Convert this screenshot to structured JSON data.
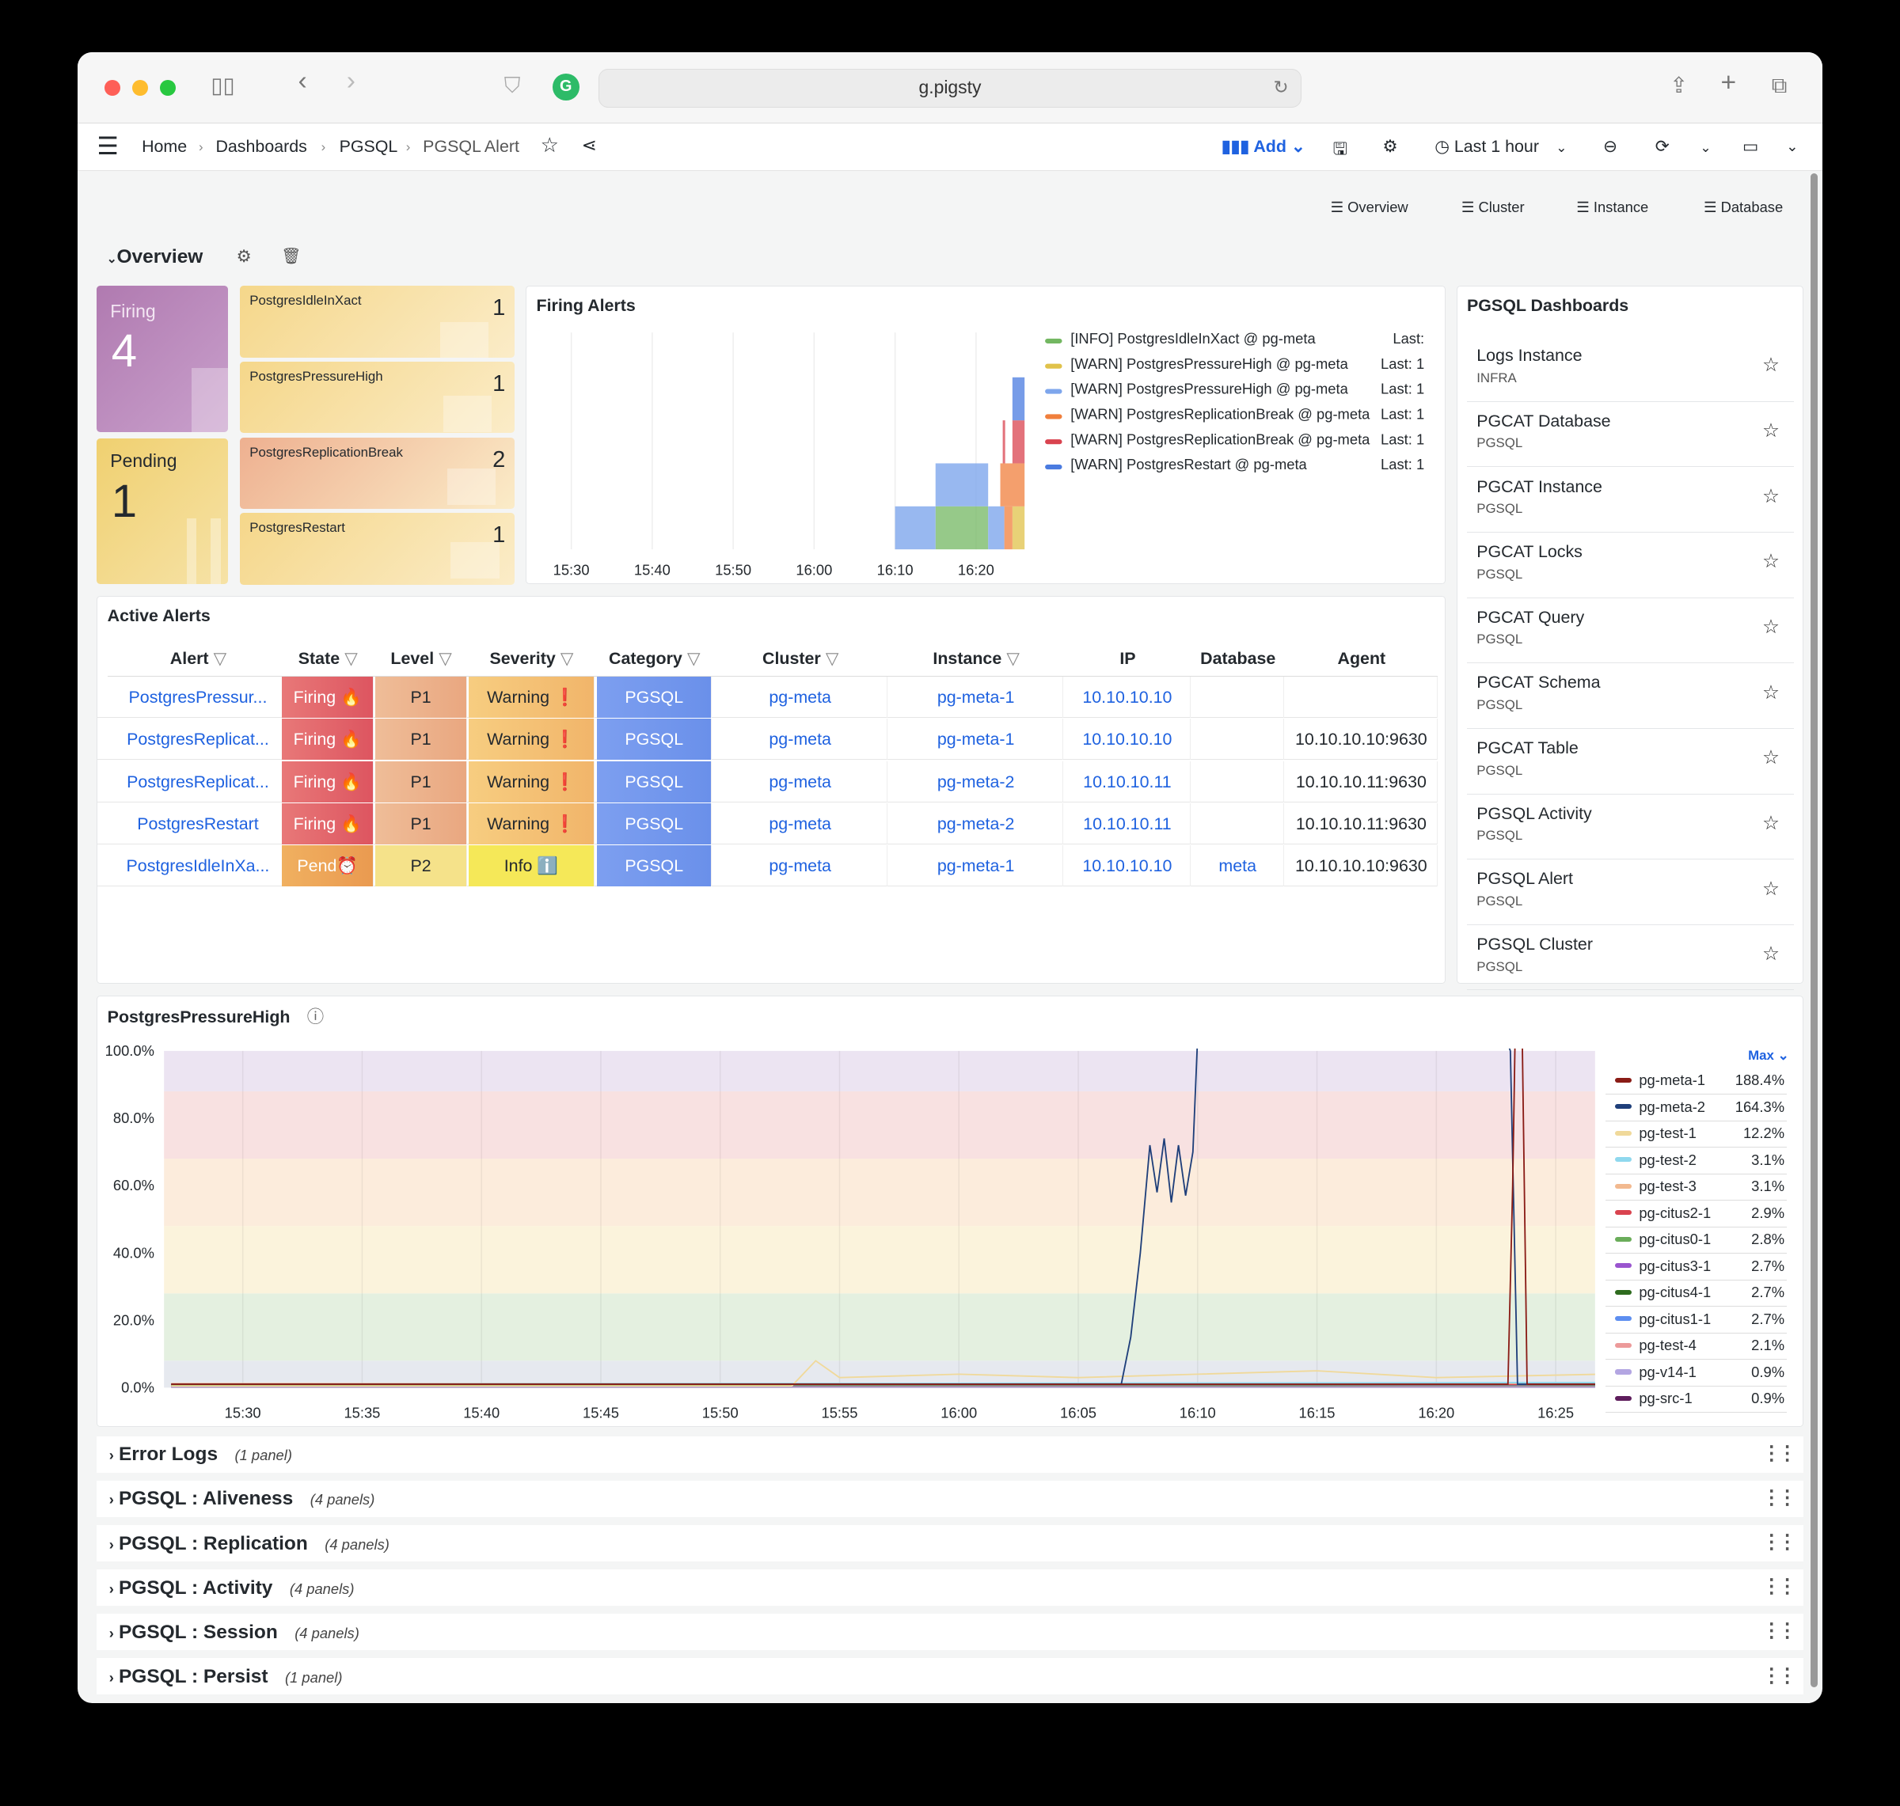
{
  "browser": {
    "url": "g.pigsty"
  },
  "nav": {
    "breadcrumbs": [
      "Home",
      "Dashboards",
      "PGSQL",
      "PGSQL Alert"
    ],
    "add_label": "Add",
    "time_range": "Last 1 hour"
  },
  "dashboard_links": [
    "Overview",
    "Cluster",
    "Instance",
    "Database"
  ],
  "overview_row": {
    "title": "Overview"
  },
  "stats": {
    "firing": {
      "label": "Firing",
      "value": "4"
    },
    "pending": {
      "label": "Pending",
      "value": "1"
    }
  },
  "alert_list": [
    {
      "name": "PostgresIdleInXact",
      "count": "1",
      "color": "#f5d78a"
    },
    {
      "name": "PostgresPressureHigh",
      "count": "1",
      "color": "#f5d78a"
    },
    {
      "name": "PostgresReplicationBreak",
      "count": "2",
      "color": "#eeb090"
    },
    {
      "name": "PostgresRestart",
      "count": "1",
      "color": "#f5d78a"
    }
  ],
  "firing_alerts": {
    "title": "Firing Alerts"
  },
  "chart_data": [
    {
      "type": "bar",
      "title": "Firing Alerts",
      "x_ticks": [
        "15:30",
        "15:40",
        "15:50",
        "16:00",
        "16:10",
        "16:20"
      ],
      "stacked": true,
      "legend_placement": "right",
      "series": [
        {
          "name": "[INFO] PostgresIdleInXact @ pg-meta",
          "last": "Last:",
          "color": "#73b761",
          "segments": [
            {
              "start": "16:15",
              "end": "16:21.5",
              "value": 1
            }
          ]
        },
        {
          "name": "[WARN] PostgresPressureHigh @ pg-meta",
          "last": "Last: 1",
          "color": "#e0c24a",
          "segments": [
            {
              "start": "16:24.5",
              "end": "16:26",
              "value": 1
            }
          ]
        },
        {
          "name": "[WARN] PostgresPressureHigh @ pg-meta",
          "last": "Last: 1",
          "color": "#7ea6ec",
          "segments": [
            {
              "start": "16:10",
              "end": "16:23.5",
              "value": 1
            }
          ]
        },
        {
          "name": "[WARN] PostgresReplicationBreak @ pg-meta",
          "last": "Last: 1",
          "color": "#f07f3c",
          "segments": [
            {
              "start": "16:23",
              "end": "16:26",
              "value": 1
            }
          ]
        },
        {
          "name": "[WARN] PostgresReplicationBreak @ pg-meta",
          "last": "Last: 1",
          "color": "#d9434f",
          "segments": [
            {
              "start": "16:23.3",
              "end": "16:23.6",
              "value": 1
            },
            {
              "start": "16:24.5",
              "end": "16:26",
              "value": 1
            }
          ]
        },
        {
          "name": "[WARN] PostgresRestart @ pg-meta",
          "last": "Last: 1",
          "color": "#4a7be0",
          "segments": [
            {
              "start": "16:24.5",
              "end": "16:26",
              "value": 1
            }
          ]
        }
      ]
    },
    {
      "type": "line",
      "title": "PostgresPressureHigh",
      "x_ticks": [
        "15:30",
        "15:35",
        "15:40",
        "15:45",
        "15:50",
        "15:55",
        "16:00",
        "16:05",
        "16:10",
        "16:15",
        "16:20",
        "16:25"
      ],
      "y_ticks": [
        "0.0%",
        "20.0%",
        "40.0%",
        "60.0%",
        "80.0%",
        "100.0%"
      ],
      "ylim": [
        0,
        100
      ],
      "legend_placement": "right",
      "legend_stat": "Max",
      "thresholds": [
        {
          "from": 0,
          "to": 8,
          "color": "#e6e9ef"
        },
        {
          "from": 8,
          "to": 28,
          "color": "#e4f0e0"
        },
        {
          "from": 28,
          "to": 48,
          "color": "#fbf3dc"
        },
        {
          "from": 48,
          "to": 68,
          "color": "#fcecdc"
        },
        {
          "from": 68,
          "to": 88,
          "color": "#f8e1e1"
        },
        {
          "from": 88,
          "to": 100,
          "color": "#ece4f2"
        }
      ],
      "series": [
        {
          "name": "pg-meta-1",
          "max": "188.4%",
          "color": "#8a1c16",
          "points": [
            [
              "15:27",
              1
            ],
            [
              "16:23.0",
              1
            ],
            [
              "16:23.2",
              60
            ],
            [
              "16:23.3",
              188
            ],
            [
              "16:23.6",
              188
            ],
            [
              "16:23.8",
              1
            ],
            [
              "16:27",
              1
            ]
          ]
        },
        {
          "name": "pg-meta-2",
          "max": "164.3%",
          "color": "#1f3f7a",
          "points": [
            [
              "15:27",
              1
            ],
            [
              "16:06.8",
              1
            ],
            [
              "16:07.2",
              15
            ],
            [
              "16:07.6",
              40
            ],
            [
              "16:08",
              72
            ],
            [
              "16:08.3",
              58
            ],
            [
              "16:08.6",
              74
            ],
            [
              "16:08.9",
              55
            ],
            [
              "16:09.2",
              72
            ],
            [
              "16:09.5",
              57
            ],
            [
              "16:09.8",
              70
            ],
            [
              "16:10",
              164
            ],
            [
              "16:22.9",
              164
            ],
            [
              "16:23.1",
              100
            ],
            [
              "16:23.4",
              1
            ],
            [
              "16:27",
              1
            ]
          ]
        },
        {
          "name": "pg-test-1",
          "max": "12.2%",
          "color": "#f0d99a",
          "points": [
            [
              "15:27",
              0.5
            ],
            [
              "15:53",
              0.5
            ],
            [
              "15:54",
              8
            ],
            [
              "15:55",
              3
            ],
            [
              "16:00",
              4
            ],
            [
              "16:05",
              3
            ],
            [
              "16:10",
              4
            ],
            [
              "16:15",
              5
            ],
            [
              "16:20",
              3
            ],
            [
              "16:27",
              4
            ]
          ]
        },
        {
          "name": "pg-test-2",
          "max": "3.1%",
          "color": "#8fd8ee",
          "points": [
            [
              "15:27",
              1
            ],
            [
              "16:27",
              1.5
            ]
          ]
        },
        {
          "name": "pg-test-3",
          "max": "3.1%",
          "color": "#f2b98f",
          "points": [
            [
              "15:27",
              1.2
            ],
            [
              "16:27",
              1.3
            ]
          ]
        },
        {
          "name": "pg-citus2-1",
          "max": "2.9%",
          "color": "#d9434f",
          "points": [
            [
              "15:27",
              1
            ],
            [
              "16:27",
              1
            ]
          ]
        },
        {
          "name": "pg-citus0-1",
          "max": "2.8%",
          "color": "#6aad5a",
          "points": [
            [
              "15:27",
              0.8
            ],
            [
              "16:27",
              0.9
            ]
          ]
        },
        {
          "name": "pg-citus3-1",
          "max": "2.7%",
          "color": "#9a55cf",
          "points": [
            [
              "15:27",
              0.7
            ],
            [
              "16:27",
              0.8
            ]
          ]
        },
        {
          "name": "pg-citus4-1",
          "max": "2.7%",
          "color": "#2e6b1e",
          "points": [
            [
              "15:27",
              0.6
            ],
            [
              "16:27",
              0.7
            ]
          ]
        },
        {
          "name": "pg-citus1-1",
          "max": "2.7%",
          "color": "#5d8ef0",
          "points": [
            [
              "15:27",
              0.9
            ],
            [
              "16:27",
              0.8
            ]
          ]
        },
        {
          "name": "pg-test-4",
          "max": "2.1%",
          "color": "#ec9a9a",
          "points": [
            [
              "15:27",
              0.5
            ],
            [
              "16:27",
              0.6
            ]
          ]
        },
        {
          "name": "pg-v14-1",
          "max": "0.9%",
          "color": "#b3a6e2",
          "points": [
            [
              "15:27",
              0.3
            ],
            [
              "16:27",
              0.3
            ]
          ]
        },
        {
          "name": "pg-src-1",
          "max": "0.9%",
          "color": "#5e1d5c",
          "points": [
            [
              "15:27",
              0.2
            ],
            [
              "16:27",
              0.2
            ]
          ]
        }
      ]
    }
  ],
  "active_alerts": {
    "title": "Active Alerts",
    "headers": [
      "Alert",
      "State",
      "Level",
      "Severity",
      "Category",
      "Cluster",
      "Instance",
      "IP",
      "Database",
      "Agent"
    ],
    "rows": [
      [
        "PostgresPressur...",
        "Firing 🔥",
        "P1",
        "Warning ❗",
        "PGSQL",
        "pg-meta",
        "pg-meta-1",
        "10.10.10.10",
        "",
        ""
      ],
      [
        "PostgresReplicat...",
        "Firing 🔥",
        "P1",
        "Warning ❗",
        "PGSQL",
        "pg-meta",
        "pg-meta-1",
        "10.10.10.10",
        "",
        "10.10.10.10:9630"
      ],
      [
        "PostgresReplicat...",
        "Firing 🔥",
        "P1",
        "Warning ❗",
        "PGSQL",
        "pg-meta",
        "pg-meta-2",
        "10.10.10.11",
        "",
        "10.10.10.11:9630"
      ],
      [
        "PostgresRestart",
        "Firing 🔥",
        "P1",
        "Warning ❗",
        "PGSQL",
        "pg-meta",
        "pg-meta-2",
        "10.10.10.11",
        "",
        "10.10.10.11:9630"
      ],
      [
        "PostgresIdleInXa...",
        "Pend⏰",
        "P2",
        "Info ℹ️",
        "PGSQL",
        "pg-meta",
        "pg-meta-1",
        "10.10.10.10",
        "meta",
        "10.10.10.10:9630"
      ]
    ]
  },
  "dashboards": {
    "title": "PGSQL Dashboards",
    "items": [
      {
        "title": "Logs Instance",
        "tag": "INFRA"
      },
      {
        "title": "PGCAT Database",
        "tag": "PGSQL"
      },
      {
        "title": "PGCAT Instance",
        "tag": "PGSQL"
      },
      {
        "title": "PGCAT Locks",
        "tag": "PGSQL"
      },
      {
        "title": "PGCAT Query",
        "tag": "PGSQL"
      },
      {
        "title": "PGCAT Schema",
        "tag": "PGSQL"
      },
      {
        "title": "PGCAT Table",
        "tag": "PGSQL"
      },
      {
        "title": "PGSQL Activity",
        "tag": "PGSQL"
      },
      {
        "title": "PGSQL Alert",
        "tag": "PGSQL"
      },
      {
        "title": "PGSQL Cluster",
        "tag": "PGSQL"
      }
    ]
  },
  "pressure": {
    "title": "PostgresPressureHigh"
  },
  "rows": [
    {
      "title": "Error Logs",
      "count": "(1 panel)"
    },
    {
      "title": "PGSQL : Aliveness",
      "count": "(4 panels)"
    },
    {
      "title": "PGSQL : Replication",
      "count": "(4 panels)"
    },
    {
      "title": "PGSQL : Activity",
      "count": "(4 panels)"
    },
    {
      "title": "PGSQL : Session",
      "count": "(4 panels)"
    },
    {
      "title": "PGSQL : Persist",
      "count": "(1 panel)"
    }
  ]
}
